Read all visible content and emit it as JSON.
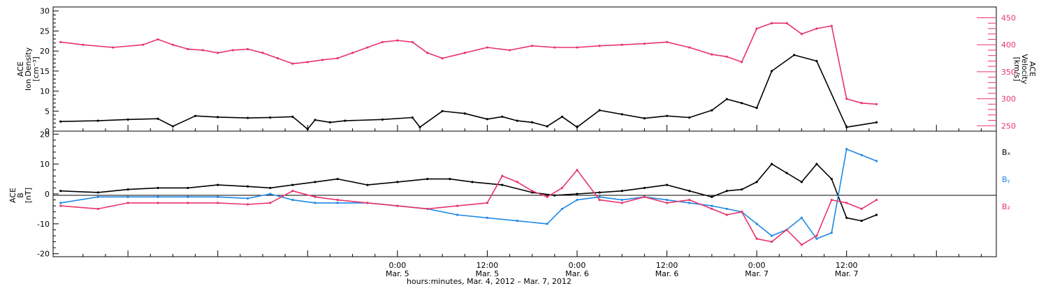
{
  "chart_data": [
    {
      "type": "scatter",
      "panel": "top",
      "y_left": {
        "label_lines": [
          "ACE",
          "Ion Density",
          "[cm⁻³]"
        ],
        "range": [
          0,
          31
        ],
        "ticks": [
          0,
          5,
          10,
          15,
          20,
          25,
          30
        ],
        "tick_labels": [
          "0",
          "5",
          "10",
          "15",
          "20",
          "25",
          "30"
        ]
      },
      "y_right": {
        "label_lines": [
          "ACE",
          "Velocity",
          "[km/s]"
        ],
        "range": [
          240,
          470
        ],
        "ticks": [
          250,
          300,
          350,
          400,
          450
        ],
        "tick_labels": [
          "250",
          "300",
          "350",
          "400",
          "450"
        ],
        "color": "#e8336b"
      },
      "series": [
        {
          "color": "#000000",
          "axis": "left",
          "x": [
            -21,
            -16,
            -12,
            -8,
            -6,
            -3,
            0,
            4,
            7,
            10,
            12,
            13,
            15,
            17,
            22,
            26,
            27,
            30,
            33,
            36,
            38,
            40,
            42,
            44,
            46,
            48,
            51,
            54,
            57,
            60,
            63,
            66,
            68,
            70,
            72,
            74,
            77,
            80,
            84,
            88
          ],
          "y": [
            2.4,
            2.6,
            2.9,
            3.1,
            1.2,
            3.8,
            3.5,
            3.3,
            3.4,
            3.6,
            0.5,
            2.8,
            2.2,
            2.6,
            2.9,
            3.4,
            1.0,
            5.0,
            4.4,
            3.0,
            3.6,
            2.6,
            2.2,
            1.2,
            3.6,
            1.0,
            5.2,
            4.2,
            3.2,
            3.8,
            3.4,
            5.2,
            8.0,
            7.0,
            5.8,
            15.0,
            19.0,
            17.5,
            1.0,
            2.2
          ]
        },
        {
          "color": "#e8336b",
          "axis": "right",
          "x": [
            -21,
            -18,
            -14,
            -10,
            -8,
            -6,
            -4,
            -2,
            0,
            2,
            4,
            6,
            8,
            10,
            12,
            14,
            16,
            18,
            20,
            22,
            24,
            26,
            28,
            30,
            33,
            36,
            39,
            42,
            45,
            48,
            51,
            54,
            57,
            60,
            63,
            66,
            68,
            70,
            72,
            74,
            76,
            78,
            80,
            82,
            84,
            86,
            88
          ],
          "y": [
            405,
            400,
            395,
            400,
            410,
            400,
            392,
            390,
            385,
            390,
            392,
            385,
            375,
            365,
            368,
            372,
            375,
            385,
            395,
            405,
            408,
            405,
            385,
            375,
            385,
            395,
            390,
            398,
            395,
            395,
            398,
            400,
            402,
            405,
            395,
            382,
            378,
            368,
            430,
            440,
            440,
            420,
            430,
            435,
            300,
            292,
            290
          ]
        }
      ]
    },
    {
      "type": "scatter",
      "panel": "bottom",
      "y_left": {
        "label_lines": [
          "ACE",
          "B",
          "[nT]"
        ],
        "range": [
          -21,
          21
        ],
        "ticks": [
          -20,
          -10,
          0,
          10,
          20
        ],
        "tick_labels": [
          "-20",
          "-10",
          "0",
          "10",
          "20"
        ]
      },
      "legend": [
        "Bₓ",
        "Bᵧ",
        "B₂"
      ],
      "legend_colors": [
        "#000000",
        "#1e88e5",
        "#e8336b"
      ],
      "zero_line": true,
      "series": [
        {
          "name": "Bₓ",
          "color": "#000000",
          "x": [
            -21,
            -16,
            -12,
            -8,
            -4,
            0,
            4,
            7,
            10,
            13,
            16,
            20,
            24,
            28,
            31,
            34,
            38,
            42,
            45,
            48,
            51,
            54,
            57,
            60,
            63,
            66,
            68,
            70,
            72,
            74,
            76,
            78,
            80,
            82,
            84,
            86,
            88
          ],
          "y": [
            1,
            0.5,
            1.5,
            2,
            2,
            3,
            2.5,
            2,
            3,
            4,
            5,
            3,
            4,
            5,
            5,
            4,
            3,
            0.5,
            -0.5,
            0,
            0.5,
            1,
            2,
            3,
            1,
            -1,
            1,
            1.5,
            4,
            10,
            7,
            4,
            10,
            5,
            -8,
            -9,
            -7
          ]
        },
        {
          "name": "Bᵧ",
          "color": "#1e88e5",
          "x": [
            -21,
            -16,
            -12,
            -8,
            -4,
            0,
            4,
            7,
            10,
            13,
            16,
            20,
            24,
            28,
            32,
            36,
            40,
            44,
            46,
            48,
            51,
            54,
            57,
            60,
            63,
            66,
            68,
            70,
            72,
            74,
            76,
            78,
            80,
            82,
            84,
            86,
            88
          ],
          "y": [
            -3,
            -1,
            -1,
            -1,
            -1,
            -1,
            -1.5,
            0,
            -2,
            -3,
            -3,
            -3,
            -4,
            -5,
            -7,
            -8,
            -9,
            -10,
            -5,
            -2,
            -1,
            -2,
            -1,
            -2,
            -3,
            -4,
            -5,
            -6,
            -10,
            -14,
            -12,
            -8,
            -15,
            -13,
            15,
            13,
            11
          ]
        },
        {
          "name": "B₂",
          "color": "#e8336b",
          "x": [
            -21,
            -16,
            -12,
            -8,
            -4,
            0,
            4,
            7,
            10,
            13,
            16,
            20,
            24,
            28,
            32,
            36,
            38,
            40,
            42,
            44,
            46,
            48,
            51,
            54,
            57,
            60,
            63,
            66,
            68,
            70,
            72,
            74,
            76,
            78,
            80,
            82,
            84,
            86,
            88
          ],
          "y": [
            -4,
            -5,
            -3,
            -3,
            -3,
            -3,
            -3.5,
            -3,
            1,
            -1,
            -2,
            -3,
            -4,
            -5,
            -4,
            -3,
            6,
            4,
            1,
            -1,
            2,
            8,
            -2,
            -3,
            -1,
            -3,
            -2,
            -5,
            -7,
            -6,
            -15,
            -16,
            -12,
            -17,
            -14,
            -2,
            -3,
            -5,
            -2
          ]
        }
      ]
    }
  ],
  "x_axis": {
    "range": [
      -22,
      104
    ],
    "ticks": [
      24,
      36,
      48,
      60,
      72,
      84,
      96
    ],
    "tick_labels": [
      {
        "time": "0:00",
        "date": "Mar. 5"
      },
      {
        "time": "12:00",
        "date": "Mar. 5"
      },
      {
        "time": "0:00",
        "date": "Mar. 6"
      },
      {
        "time": "12:00",
        "date": "Mar. 6"
      },
      {
        "time": "0:00",
        "date": "Mar. 7"
      },
      {
        "time": "12:00",
        "date": "Mar. 7"
      }
    ],
    "label": "hours:minutes, Mar.  4, 2012 – Mar.  7, 2012"
  }
}
